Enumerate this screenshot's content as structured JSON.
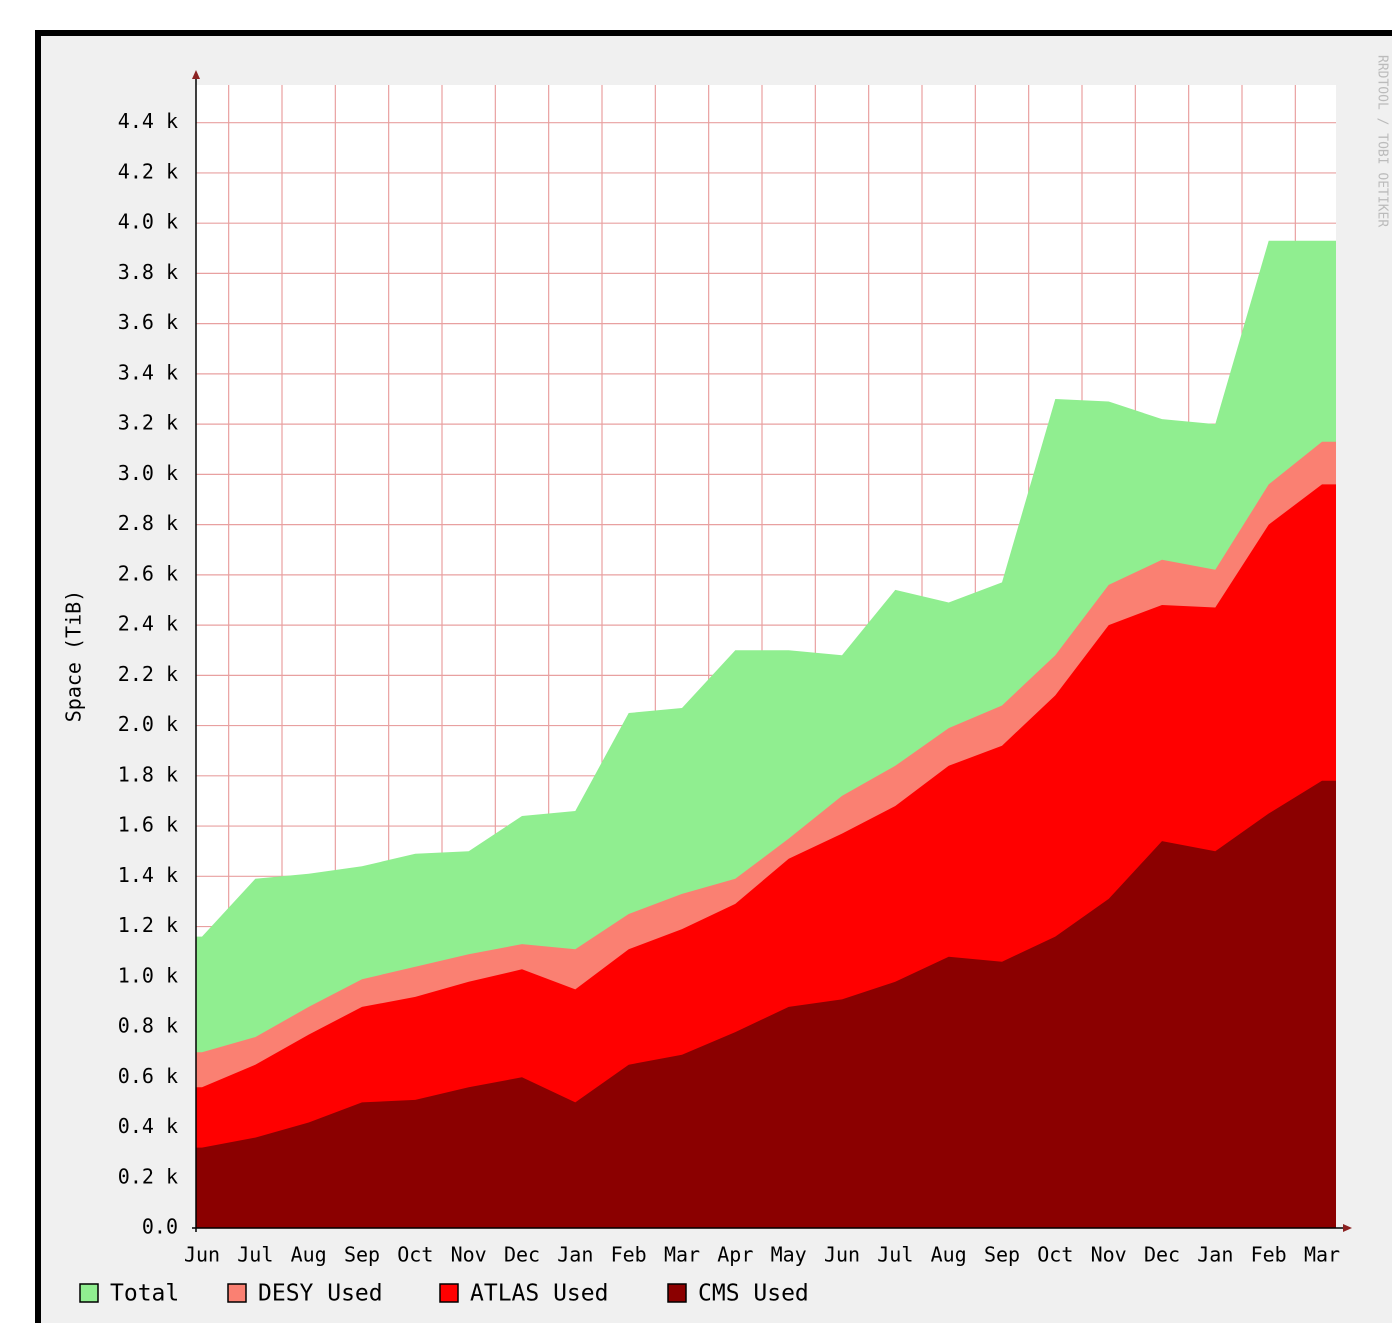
{
  "chart_data": {
    "type": "area",
    "watermark": "RRDTOOL / TOBI OETIKER",
    "ylabel": "Space (TiB)",
    "categories": [
      "Jun",
      "Jul",
      "Aug",
      "Sep",
      "Oct",
      "Nov",
      "Dec",
      "Jan",
      "Feb",
      "Mar",
      "Apr",
      "May",
      "Jun",
      "Jul",
      "Aug",
      "Sep",
      "Oct",
      "Nov",
      "Dec",
      "Jan",
      "Feb",
      "Mar"
    ],
    "series": [
      {
        "name": "Total",
        "color": "#90ee90",
        "values": [
          1160,
          1390,
          1410,
          1440,
          1490,
          1500,
          1640,
          1660,
          2050,
          2070,
          2300,
          2300,
          2280,
          2540,
          2490,
          2570,
          3300,
          3290,
          3220,
          3200,
          3930,
          3930
        ]
      },
      {
        "name": "DESY Used",
        "color": "#fa8072",
        "values": [
          700,
          760,
          880,
          990,
          1040,
          1090,
          1130,
          1110,
          1250,
          1330,
          1390,
          1550,
          1720,
          1840,
          1990,
          2080,
          2280,
          2560,
          2660,
          2620,
          2960,
          3130
        ]
      },
      {
        "name": "ATLAS Used",
        "color": "#ff0000",
        "values": [
          560,
          650,
          770,
          880,
          920,
          980,
          1030,
          950,
          1110,
          1190,
          1290,
          1470,
          1570,
          1680,
          1840,
          1920,
          2120,
          2400,
          2480,
          2470,
          2800,
          2960
        ]
      },
      {
        "name": "CMS Used",
        "color": "#8b0000",
        "values": [
          320,
          360,
          420,
          500,
          510,
          560,
          600,
          500,
          650,
          690,
          780,
          880,
          910,
          980,
          1080,
          1060,
          1160,
          1310,
          1540,
          1500,
          1650,
          1780
        ]
      }
    ],
    "ylim": [
      0,
      4550
    ],
    "yticks": [
      {
        "value": 0,
        "label": "0.0"
      },
      {
        "value": 200,
        "label": "0.2 k"
      },
      {
        "value": 400,
        "label": "0.4 k"
      },
      {
        "value": 600,
        "label": "0.6 k"
      },
      {
        "value": 800,
        "label": "0.8 k"
      },
      {
        "value": 1000,
        "label": "1.0 k"
      },
      {
        "value": 1200,
        "label": "1.2 k"
      },
      {
        "value": 1400,
        "label": "1.4 k"
      },
      {
        "value": 1600,
        "label": "1.6 k"
      },
      {
        "value": 1800,
        "label": "1.8 k"
      },
      {
        "value": 2000,
        "label": "2.0 k"
      },
      {
        "value": 2200,
        "label": "2.2 k"
      },
      {
        "value": 2400,
        "label": "2.4 k"
      },
      {
        "value": 2600,
        "label": "2.6 k"
      },
      {
        "value": 2800,
        "label": "2.8 k"
      },
      {
        "value": 3000,
        "label": "3.0 k"
      },
      {
        "value": 3200,
        "label": "3.2 k"
      },
      {
        "value": 3400,
        "label": "3.4 k"
      },
      {
        "value": 3600,
        "label": "3.6 k"
      },
      {
        "value": 3800,
        "label": "3.8 k"
      },
      {
        "value": 4000,
        "label": "4.0 k"
      },
      {
        "value": 4200,
        "label": "4.2 k"
      },
      {
        "value": 4400,
        "label": "4.4 k"
      }
    ],
    "grid": true
  }
}
